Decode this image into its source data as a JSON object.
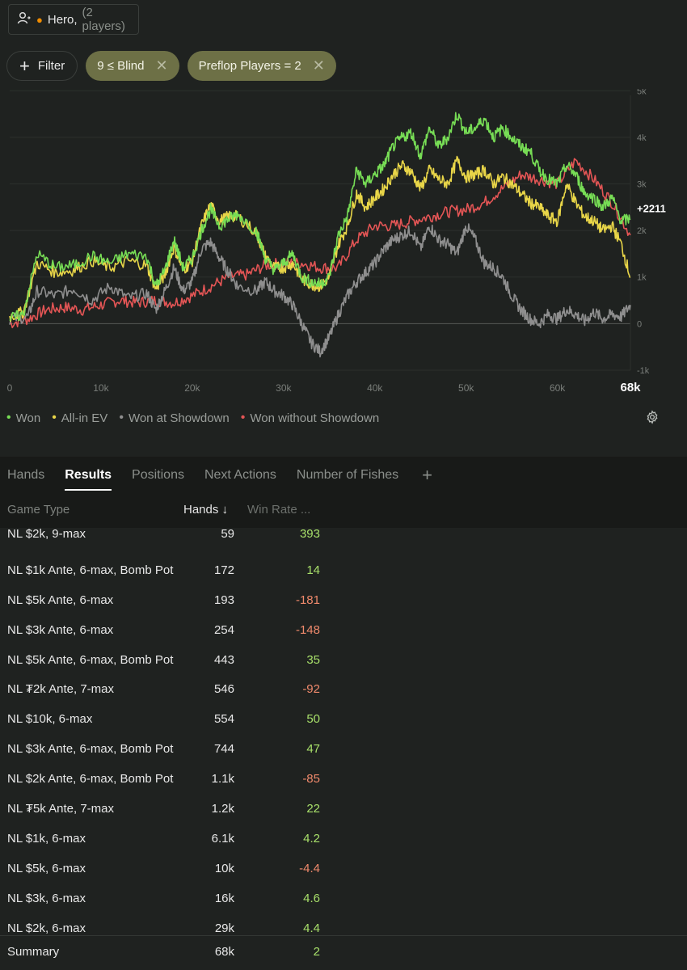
{
  "player": {
    "icon": "user-switch-icon",
    "name": "Hero,",
    "count": "(2 players)"
  },
  "filters": {
    "add_label": "Filter",
    "chips": [
      {
        "label": "9 ≤ Blind"
      },
      {
        "label": "Preflop Players = 2"
      }
    ]
  },
  "chart_data": {
    "type": "line",
    "y_tick_labels": [
      "5k",
      "4k",
      "3k",
      "2k",
      "1k",
      "0",
      "-1k"
    ],
    "y_ticks": [
      5000,
      4000,
      3000,
      2000,
      1000,
      0,
      -1000
    ],
    "x_tick_labels": [
      "0",
      "10k",
      "20k",
      "30k",
      "40k",
      "50k",
      "60k",
      "68k"
    ],
    "x_ticks": [
      0,
      10000,
      20000,
      30000,
      40000,
      50000,
      60000,
      68000
    ],
    "xlim": [
      0,
      68000
    ],
    "ylim": [
      -1000,
      4900
    ],
    "end_label": "+2211",
    "series": [
      {
        "name": "Won",
        "color": "#77dd55",
        "x": [
          0,
          1500,
          3000,
          5000,
          7000,
          9000,
          11000,
          13000,
          15000,
          16000,
          17000,
          18000,
          19000,
          20000,
          21000,
          22000,
          23000,
          24000,
          25000,
          27000,
          28000,
          29000,
          30000,
          31000,
          32000,
          33000,
          34000,
          35000,
          36000,
          37000,
          38000,
          39000,
          40000,
          41000,
          42000,
          43000,
          44000,
          45000,
          46000,
          47000,
          48000,
          49000,
          50000,
          51000,
          52000,
          53000,
          54000,
          55000,
          56000,
          57000,
          58000,
          59000,
          60000,
          61000,
          62000,
          63000,
          64000,
          65000,
          66000,
          67000,
          68000
        ],
        "y": [
          100,
          200,
          1500,
          1200,
          1250,
          1450,
          1300,
          1500,
          1450,
          800,
          1150,
          1800,
          1200,
          1400,
          2000,
          2450,
          2100,
          2250,
          2350,
          2000,
          1400,
          1150,
          1300,
          1500,
          1000,
          900,
          850,
          1000,
          1900,
          2300,
          3300,
          3000,
          3200,
          3400,
          3800,
          4000,
          4100,
          3600,
          4200,
          3800,
          4000,
          4500,
          4100,
          4200,
          4400,
          4000,
          4200,
          4000,
          3800,
          3700,
          3300,
          3100,
          3000,
          3400,
          3200,
          2800,
          2700,
          2500,
          2700,
          2200,
          2250
        ]
      },
      {
        "name": "All-in EV",
        "color": "#e8d548",
        "x": [
          0,
          1500,
          3000,
          5000,
          7000,
          9000,
          11000,
          13000,
          15000,
          16000,
          17000,
          18000,
          19000,
          20000,
          21000,
          22000,
          23000,
          24000,
          25000,
          27000,
          28000,
          29000,
          30000,
          31000,
          32000,
          33000,
          34000,
          35000,
          36000,
          37000,
          38000,
          39000,
          40000,
          41000,
          42000,
          43000,
          44000,
          45000,
          46000,
          47000,
          48000,
          49000,
          50000,
          51000,
          52000,
          53000,
          54000,
          55000,
          56000,
          57000,
          58000,
          59000,
          60000,
          61000,
          62000,
          63000,
          64000,
          65000,
          66000,
          67000,
          68000
        ],
        "y": [
          150,
          250,
          1300,
          1100,
          1150,
          1350,
          1200,
          1350,
          1250,
          750,
          1050,
          1650,
          1150,
          1350,
          2100,
          2550,
          2200,
          2300,
          2300,
          1950,
          1450,
          1200,
          1200,
          1300,
          950,
          850,
          800,
          1000,
          1700,
          2100,
          2800,
          2500,
          2700,
          2900,
          3200,
          3400,
          3250,
          2900,
          3300,
          3100,
          3000,
          3500,
          3150,
          3200,
          3300,
          3000,
          3150,
          3000,
          2800,
          2600,
          2500,
          2300,
          2200,
          3000,
          2600,
          2300,
          2200,
          2000,
          2100,
          1700,
          1000
        ]
      },
      {
        "name": "Won at Showdown",
        "color": "#8e8e8e",
        "x": [
          0,
          2000,
          3000,
          5000,
          7000,
          9000,
          11000,
          13000,
          15000,
          16000,
          17000,
          18000,
          19000,
          20000,
          21000,
          22000,
          23000,
          24000,
          25000,
          27000,
          28000,
          29000,
          30000,
          31000,
          32000,
          33000,
          34000,
          35000,
          36000,
          37000,
          38000,
          39000,
          40000,
          41000,
          42000,
          43000,
          44000,
          45000,
          46000,
          47000,
          48000,
          49000,
          50000,
          51000,
          52000,
          53000,
          54000,
          55000,
          56000,
          57000,
          58000,
          59000,
          60000,
          61000,
          62000,
          63000,
          64000,
          65000,
          66000,
          67000,
          68000
        ],
        "y": [
          100,
          150,
          700,
          600,
          750,
          500,
          800,
          550,
          650,
          300,
          700,
          1200,
          700,
          900,
          1600,
          1750,
          1400,
          1100,
          800,
          700,
          900,
          700,
          600,
          400,
          0,
          -400,
          -600,
          -300,
          200,
          600,
          900,
          1100,
          1300,
          1600,
          1800,
          1900,
          2000,
          1600,
          2100,
          1800,
          1700,
          1500,
          2100,
          1800,
          1300,
          1200,
          1000,
          600,
          300,
          100,
          0,
          200,
          100,
          300,
          200,
          50,
          250,
          100,
          200,
          150,
          400
        ]
      },
      {
        "name": "Won without Showdown",
        "color": "#e35555",
        "x": [
          0,
          2000,
          4000,
          6000,
          8000,
          10000,
          12000,
          14000,
          16000,
          18000,
          20000,
          22000,
          24000,
          26000,
          28000,
          30000,
          32000,
          34000,
          36000,
          38000,
          40000,
          42000,
          44000,
          46000,
          48000,
          50000,
          52000,
          54000,
          56000,
          58000,
          60000,
          62000,
          64000,
          66000,
          68000
        ],
        "y": [
          0,
          100,
          300,
          350,
          300,
          400,
          500,
          450,
          500,
          450,
          600,
          800,
          1000,
          1050,
          1250,
          1300,
          1300,
          1200,
          1200,
          1800,
          2100,
          2100,
          2200,
          2300,
          2400,
          2450,
          2600,
          2900,
          3200,
          3100,
          3000,
          3500,
          3100,
          2600,
          1900
        ]
      }
    ]
  },
  "legend": [
    "Won",
    "All-in EV",
    "Won at Showdown",
    "Won without Showdown"
  ],
  "legend_colors": [
    "#77dd55",
    "#e8d548",
    "#8e8e8e",
    "#e35555"
  ],
  "settings_icon": "gear-icon",
  "tabs": [
    "Hands",
    "Results",
    "Positions",
    "Next Actions",
    "Number of Fishes"
  ],
  "active_tab": "Results",
  "table": {
    "headers": {
      "game_type": "Game Type",
      "hands": "Hands ↓",
      "win_rate": "Win Rate ..."
    },
    "rows": [
      {
        "game_type": "NL $2k, 9-max",
        "hands": "59",
        "win_rate": "393",
        "sign": "pos"
      },
      {
        "game_type": "NL $1k Ante, 6-max, Bomb Pot",
        "hands": "172",
        "win_rate": "14",
        "sign": "pos"
      },
      {
        "game_type": "NL $5k Ante, 6-max",
        "hands": "193",
        "win_rate": "-181",
        "sign": "neg"
      },
      {
        "game_type": "NL $3k Ante, 6-max",
        "hands": "254",
        "win_rate": "-148",
        "sign": "neg"
      },
      {
        "game_type": "NL $5k Ante, 6-max, Bomb Pot",
        "hands": "443",
        "win_rate": "35",
        "sign": "pos"
      },
      {
        "game_type": "NL ₮2k Ante, 7-max",
        "hands": "546",
        "win_rate": "-92",
        "sign": "neg"
      },
      {
        "game_type": "NL $10k, 6-max",
        "hands": "554",
        "win_rate": "50",
        "sign": "pos"
      },
      {
        "game_type": "NL $3k Ante, 6-max, Bomb Pot",
        "hands": "744",
        "win_rate": "47",
        "sign": "pos"
      },
      {
        "game_type": "NL $2k Ante, 6-max, Bomb Pot",
        "hands": "1.1k",
        "win_rate": "-85",
        "sign": "neg"
      },
      {
        "game_type": "NL ₮5k Ante, 7-max",
        "hands": "1.2k",
        "win_rate": "22",
        "sign": "pos"
      },
      {
        "game_type": "NL $1k, 6-max",
        "hands": "6.1k",
        "win_rate": "4.2",
        "sign": "pos"
      },
      {
        "game_type": "NL $5k, 6-max",
        "hands": "10k",
        "win_rate": "-4.4",
        "sign": "neg"
      },
      {
        "game_type": "NL $3k, 6-max",
        "hands": "16k",
        "win_rate": "4.6",
        "sign": "pos"
      },
      {
        "game_type": "NL $2k, 6-max",
        "hands": "29k",
        "win_rate": "4.4",
        "sign": "pos"
      }
    ],
    "summary": {
      "game_type": "Summary",
      "hands": "68k",
      "win_rate": "2",
      "sign": "pos"
    }
  }
}
